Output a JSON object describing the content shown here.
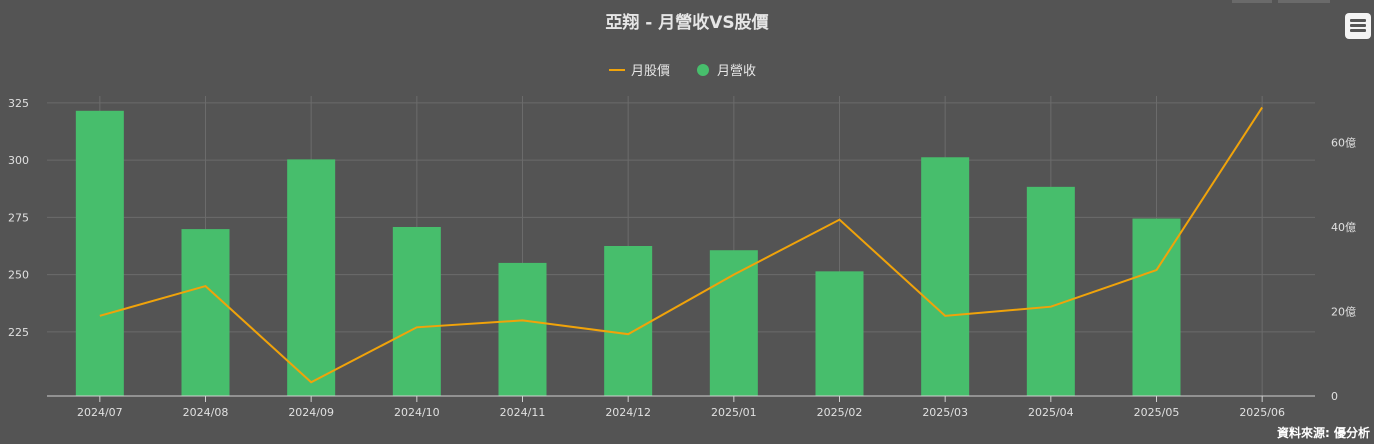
{
  "title": "亞翔 - 月營收VS股價",
  "source": "資料來源: 優分析",
  "legend": {
    "line_label": "月股價",
    "bar_label": "月營收"
  },
  "colors": {
    "bar": "#47be6c",
    "line": "#f0a30a",
    "background": "#545454",
    "grid": "#6b6b6b",
    "text": "#e6e6e6"
  },
  "menu_icon": "hamburger-menu-icon",
  "chart_data": {
    "type": "bar",
    "categories": [
      "2024/07",
      "2024/08",
      "2024/09",
      "2024/10",
      "2024/11",
      "2024/12",
      "2025/01",
      "2025/02",
      "2025/03",
      "2025/04",
      "2025/05",
      "2025/06"
    ],
    "series": [
      {
        "name": "月營收",
        "type": "bar",
        "axis": "right",
        "values": [
          67.5,
          39.5,
          56.0,
          40.0,
          31.5,
          35.5,
          34.5,
          29.5,
          56.5,
          49.5,
          42.0,
          null
        ]
      },
      {
        "name": "月股價",
        "type": "line",
        "axis": "left",
        "values": [
          232,
          245,
          203,
          227,
          230,
          224,
          250,
          274,
          232,
          236,
          252,
          323
        ]
      }
    ],
    "y_left": {
      "ticks": [
        225,
        250,
        275,
        300,
        325
      ],
      "min": 197,
      "max": 328
    },
    "y_right": {
      "ticks": [
        "0",
        "20億",
        "40億",
        "60億"
      ],
      "tick_values": [
        0,
        20,
        40,
        60
      ],
      "min": 0,
      "max": 71
    },
    "grid": true,
    "legend_position": "top-center"
  }
}
